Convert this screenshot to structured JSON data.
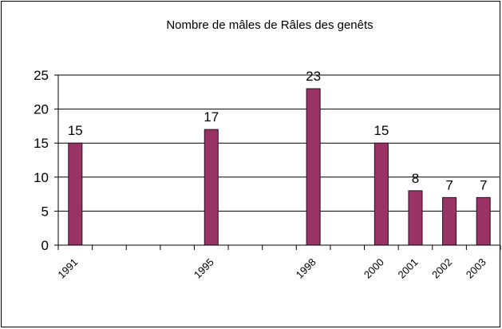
{
  "chart_data": {
    "type": "bar",
    "title": "Nombre de mâles de Râles des genêts",
    "categories": [
      "1991",
      null,
      null,
      null,
      "1995",
      null,
      null,
      "1998",
      null,
      "2000",
      "2001",
      "2002",
      "2003"
    ],
    "values": [
      15,
      null,
      null,
      null,
      17,
      null,
      null,
      23,
      null,
      15,
      8,
      7,
      7
    ],
    "color": "#993366",
    "ylim": [
      0,
      25
    ],
    "yticks": [
      0,
      5,
      10,
      15,
      20,
      25
    ],
    "grid": true
  }
}
